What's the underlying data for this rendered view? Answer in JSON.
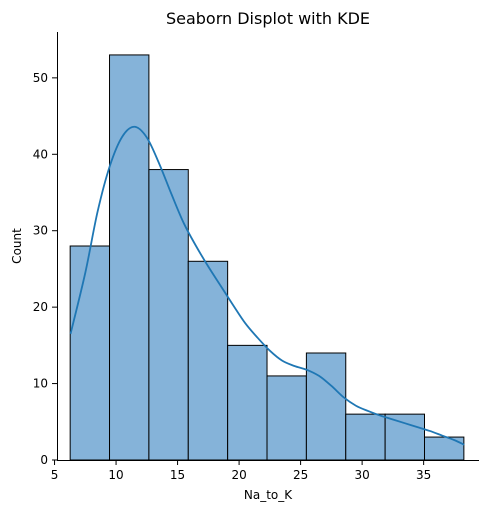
{
  "chart_data": {
    "type": "histogram",
    "title": "Seaborn Displot with KDE",
    "xlabel": "Na_to_K",
    "ylabel": "Count",
    "xlim": [
      5.2,
      39.5
    ],
    "ylim": [
      0,
      56
    ],
    "xticks": [
      5,
      10,
      15,
      20,
      25,
      30,
      35
    ],
    "yticks": [
      0,
      10,
      20,
      30,
      40,
      50
    ],
    "bin_edges": [
      6.27,
      9.47,
      12.67,
      15.87,
      19.07,
      22.27,
      25.47,
      28.67,
      31.87,
      35.07,
      38.27
    ],
    "counts": [
      28,
      53,
      38,
      26,
      15,
      11,
      14,
      6,
      6,
      3
    ],
    "kde": {
      "x": [
        6.3,
        7.5,
        8.5,
        9.5,
        10.5,
        11.5,
        12.5,
        13.5,
        14.5,
        15.5,
        16.5,
        17.5,
        18.5,
        19.5,
        20.5,
        21.5,
        22.5,
        23.5,
        24.5,
        25.5,
        26.5,
        27.5,
        28.5,
        29.5,
        30.5,
        31.5,
        32.5,
        33.5,
        34.5,
        35.5,
        36.5,
        37.5,
        38.3
      ],
      "y": [
        16.5,
        24.5,
        32.5,
        38.5,
        42.3,
        43.6,
        42.2,
        38.8,
        34.8,
        31.0,
        28.0,
        25.3,
        22.8,
        20.3,
        17.9,
        16.0,
        14.3,
        13.0,
        12.3,
        11.8,
        11.0,
        9.7,
        8.2,
        7.1,
        6.4,
        5.8,
        5.3,
        4.8,
        4.3,
        3.8,
        3.2,
        2.6,
        2.0
      ]
    },
    "grid": false,
    "legend": "none"
  },
  "colors": {
    "bar_fill": "#85b3d9",
    "kde_line": "#1f77b4"
  }
}
